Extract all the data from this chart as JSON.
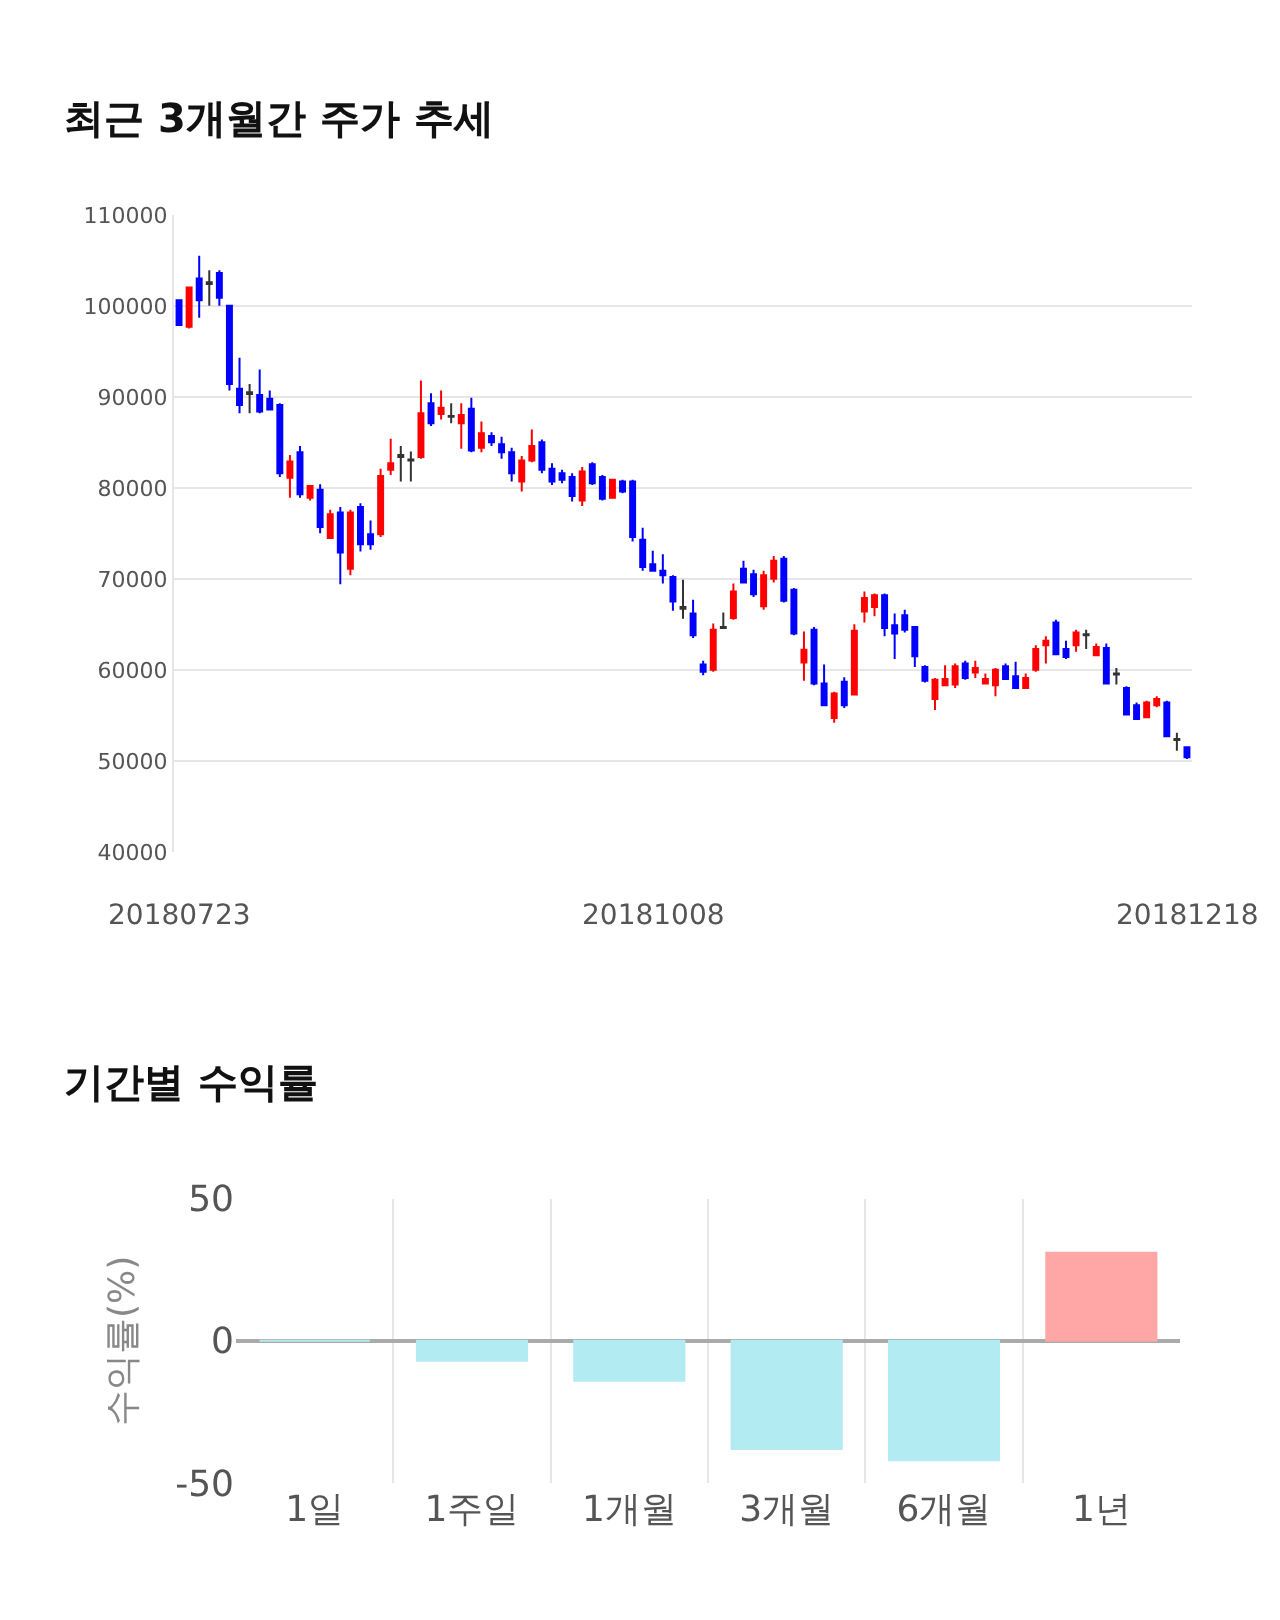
{
  "chart_data": [
    {
      "type": "candlestick",
      "title": "최근 3개월간 주가 추세",
      "categories": [
        "20180723",
        null,
        null,
        null,
        null,
        null,
        null,
        null,
        null,
        null,
        null,
        null,
        null,
        null,
        null,
        null,
        null,
        null,
        null,
        null,
        null,
        null,
        null,
        null,
        null,
        null,
        null,
        null,
        null,
        null,
        null,
        null,
        null,
        null,
        null,
        null,
        null,
        null,
        null,
        null,
        null,
        null,
        null,
        null,
        null,
        null,
        null,
        "20181008",
        null,
        null,
        null,
        null,
        null,
        null,
        null,
        null,
        null,
        null,
        null,
        null,
        null,
        null,
        null,
        null,
        null,
        null,
        null,
        null,
        null,
        null,
        null,
        null,
        null,
        null,
        null,
        null,
        null,
        null,
        null,
        null,
        null,
        null,
        null,
        null,
        null,
        null,
        null,
        null,
        null,
        null,
        null,
        null,
        null,
        null,
        null,
        null,
        null,
        null,
        null,
        null,
        "20181218"
      ],
      "ohlc": [
        [
          100600,
          100600,
          97900,
          97900
        ],
        [
          97700,
          102000,
          97500,
          102000
        ],
        [
          103000,
          105500,
          98700,
          100600
        ],
        [
          102600,
          103900,
          100000,
          102400
        ],
        [
          103600,
          103900,
          100000,
          100900
        ],
        [
          100000,
          100000,
          90700,
          91400
        ],
        [
          90900,
          94300,
          88200,
          89100
        ],
        [
          90500,
          91400,
          88200,
          90300
        ],
        [
          90200,
          93000,
          88200,
          88400
        ],
        [
          89800,
          90700,
          88500,
          88600
        ],
        [
          89100,
          89300,
          81200,
          81600
        ],
        [
          81100,
          83600,
          78900,
          82900
        ],
        [
          83900,
          84600,
          78900,
          79300
        ],
        [
          78900,
          80200,
          78600,
          80200
        ],
        [
          79800,
          80400,
          75000,
          75700
        ],
        [
          74500,
          77600,
          74500,
          77100
        ],
        [
          77300,
          77900,
          69400,
          72900
        ],
        [
          71100,
          77600,
          70400,
          77300
        ],
        [
          77900,
          78300,
          73000,
          73800
        ],
        [
          74900,
          76400,
          73200,
          73800
        ],
        [
          74900,
          82100,
          74600,
          81300
        ],
        [
          82000,
          85400,
          81400,
          82700
        ],
        [
          83600,
          84600,
          80700,
          83400
        ],
        [
          83100,
          84000,
          80700,
          83000
        ],
        [
          83400,
          91800,
          83200,
          88200
        ],
        [
          89300,
          90400,
          86800,
          87100
        ],
        [
          88100,
          90700,
          87500,
          88800
        ],
        [
          87900,
          89300,
          87100,
          87800
        ],
        [
          87100,
          89300,
          84300,
          88000
        ],
        [
          88700,
          89900,
          83900,
          84100
        ],
        [
          84400,
          87300,
          83900,
          86000
        ],
        [
          85700,
          86100,
          84600,
          85000
        ],
        [
          84800,
          85600,
          83200,
          83900
        ],
        [
          83900,
          84400,
          80700,
          81600
        ],
        [
          80700,
          83500,
          79600,
          83000
        ],
        [
          83000,
          86400,
          82800,
          84600
        ],
        [
          85000,
          85300,
          81600,
          82000
        ],
        [
          82100,
          82700,
          80300,
          80700
        ],
        [
          81600,
          82000,
          80500,
          80900
        ],
        [
          81200,
          81600,
          78500,
          79100
        ],
        [
          78600,
          82300,
          78000,
          81800
        ],
        [
          82600,
          82800,
          80300,
          80500
        ],
        [
          81200,
          81400,
          78600,
          78800
        ],
        [
          78900,
          81000,
          78800,
          80900
        ],
        [
          80700,
          80900,
          79400,
          79600
        ],
        [
          80700,
          80900,
          74100,
          74600
        ],
        [
          74300,
          75600,
          70900,
          71300
        ],
        [
          71600,
          73100,
          70800,
          70900
        ],
        [
          70900,
          72700,
          69500,
          70400
        ],
        [
          70200,
          70400,
          66500,
          67500
        ],
        [
          66900,
          69900,
          65600,
          66700
        ],
        [
          66200,
          67700,
          63500,
          63800
        ],
        [
          60600,
          61000,
          59400,
          59800
        ],
        [
          60000,
          65100,
          59800,
          64400
        ],
        [
          64700,
          66300,
          64500,
          64600
        ],
        [
          65700,
          69500,
          65500,
          68600
        ],
        [
          71100,
          72000,
          69500,
          69600
        ],
        [
          70500,
          71000,
          68000,
          68300
        ],
        [
          67000,
          70900,
          66600,
          70400
        ],
        [
          70000,
          72500,
          69600,
          72000
        ],
        [
          72200,
          72500,
          67400,
          67600
        ],
        [
          68800,
          69000,
          63800,
          64000
        ],
        [
          60800,
          64200,
          58800,
          62200
        ],
        [
          64400,
          64700,
          58300,
          58500
        ],
        [
          58500,
          60600,
          56000,
          56100
        ],
        [
          54700,
          57600,
          54200,
          57400
        ],
        [
          58700,
          59200,
          55800,
          56100
        ],
        [
          57300,
          65000,
          57200,
          64300
        ],
        [
          66400,
          68600,
          65200,
          67900
        ],
        [
          66900,
          68400,
          65900,
          68200
        ],
        [
          68200,
          68400,
          63700,
          64600
        ],
        [
          64900,
          66200,
          61200,
          64000
        ],
        [
          66000,
          66600,
          64100,
          64400
        ],
        [
          64700,
          64800,
          60300,
          61500
        ],
        [
          60300,
          60500,
          58600,
          58800
        ],
        [
          56800,
          59100,
          55600,
          58900
        ],
        [
          58300,
          60500,
          58200,
          59000
        ],
        [
          58400,
          60700,
          58000,
          60400
        ],
        [
          60700,
          61000,
          58900,
          59100
        ],
        [
          59700,
          61000,
          59100,
          60200
        ],
        [
          58500,
          59600,
          58400,
          59000
        ],
        [
          58300,
          60200,
          57100,
          60000
        ],
        [
          60400,
          60700,
          58900,
          59000
        ],
        [
          59300,
          60900,
          57900,
          58000
        ],
        [
          58000,
          59600,
          57900,
          59100
        ],
        [
          60000,
          62700,
          59800,
          62300
        ],
        [
          62700,
          63700,
          60700,
          63200
        ],
        [
          65200,
          65500,
          61600,
          61700
        ],
        [
          62300,
          63200,
          61200,
          61400
        ],
        [
          62700,
          64400,
          62000,
          64100
        ],
        [
          63900,
          64400,
          62300,
          63800
        ],
        [
          61600,
          62900,
          61500,
          62500
        ],
        [
          62400,
          62900,
          58400,
          58500
        ],
        [
          59600,
          60200,
          58400,
          59500
        ],
        [
          58000,
          58200,
          55000,
          55100
        ],
        [
          56100,
          56400,
          54500,
          54600
        ],
        [
          54800,
          56600,
          54700,
          56400
        ],
        [
          56100,
          57100,
          55900,
          56800
        ],
        [
          56400,
          56600,
          52600,
          52700
        ],
        [
          52400,
          53100,
          51100,
          52300
        ],
        [
          51500,
          51500,
          50200,
          50400
        ]
      ],
      "colors": [
        "#0000ff",
        "#ff0000",
        "#0000ff",
        "#333333",
        "#0000ff",
        "#0000ff",
        "#0000ff",
        "#333333",
        "#0000ff",
        "#0000ff",
        "#0000ff",
        "#ff0000",
        "#0000ff",
        "#ff0000",
        "#0000ff",
        "#ff0000",
        "#0000ff",
        "#ff0000",
        "#0000ff",
        "#0000ff",
        "#ff0000",
        "#ff0000",
        "#333333",
        "#333333",
        "#ff0000",
        "#0000ff",
        "#ff0000",
        "#333333",
        "#ff0000",
        "#0000ff",
        "#ff0000",
        "#0000ff",
        "#0000ff",
        "#0000ff",
        "#ff0000",
        "#ff0000",
        "#0000ff",
        "#0000ff",
        "#0000ff",
        "#0000ff",
        "#ff0000",
        "#0000ff",
        "#0000ff",
        "#ff0000",
        "#0000ff",
        "#0000ff",
        "#0000ff",
        "#0000ff",
        "#0000ff",
        "#0000ff",
        "#333333",
        "#0000ff",
        "#0000ff",
        "#ff0000",
        "#333333",
        "#ff0000",
        "#0000ff",
        "#0000ff",
        "#ff0000",
        "#ff0000",
        "#0000ff",
        "#0000ff",
        "#ff0000",
        "#0000ff",
        "#0000ff",
        "#ff0000",
        "#0000ff",
        "#ff0000",
        "#ff0000",
        "#ff0000",
        "#0000ff",
        "#0000ff",
        "#0000ff",
        "#0000ff",
        "#0000ff",
        "#ff0000",
        "#ff0000",
        "#ff0000",
        "#0000ff",
        "#ff0000",
        "#ff0000",
        "#ff0000",
        "#0000ff",
        "#0000ff",
        "#ff0000",
        "#ff0000",
        "#ff0000",
        "#0000ff",
        "#0000ff",
        "#ff0000",
        "#333333",
        "#ff0000",
        "#0000ff",
        "#333333",
        "#0000ff",
        "#0000ff",
        "#ff0000",
        "#ff0000",
        "#0000ff",
        "#333333",
        "#0000ff"
      ],
      "ylim": [
        40000,
        110000
      ],
      "yticks": [
        40000,
        50000,
        60000,
        70000,
        80000,
        90000,
        100000,
        110000
      ],
      "grid": "y",
      "legend": false
    },
    {
      "type": "bar",
      "title": "기간별 수익률",
      "ylabel": "수익률(%)",
      "categories": [
        "1일",
        "1주일",
        "1개월",
        "3개월",
        "6개월",
        "1년"
      ],
      "values": [
        0,
        -7,
        -14,
        -38,
        -42,
        31
      ],
      "colors": [
        "#b2ebf2",
        "#b2ebf2",
        "#b2ebf2",
        "#b2ebf2",
        "#b2ebf2",
        "#ffa6a6"
      ],
      "ylim": [
        -50,
        50
      ],
      "yticks": [
        -50,
        0,
        50
      ],
      "grid": true,
      "legend": false
    }
  ]
}
